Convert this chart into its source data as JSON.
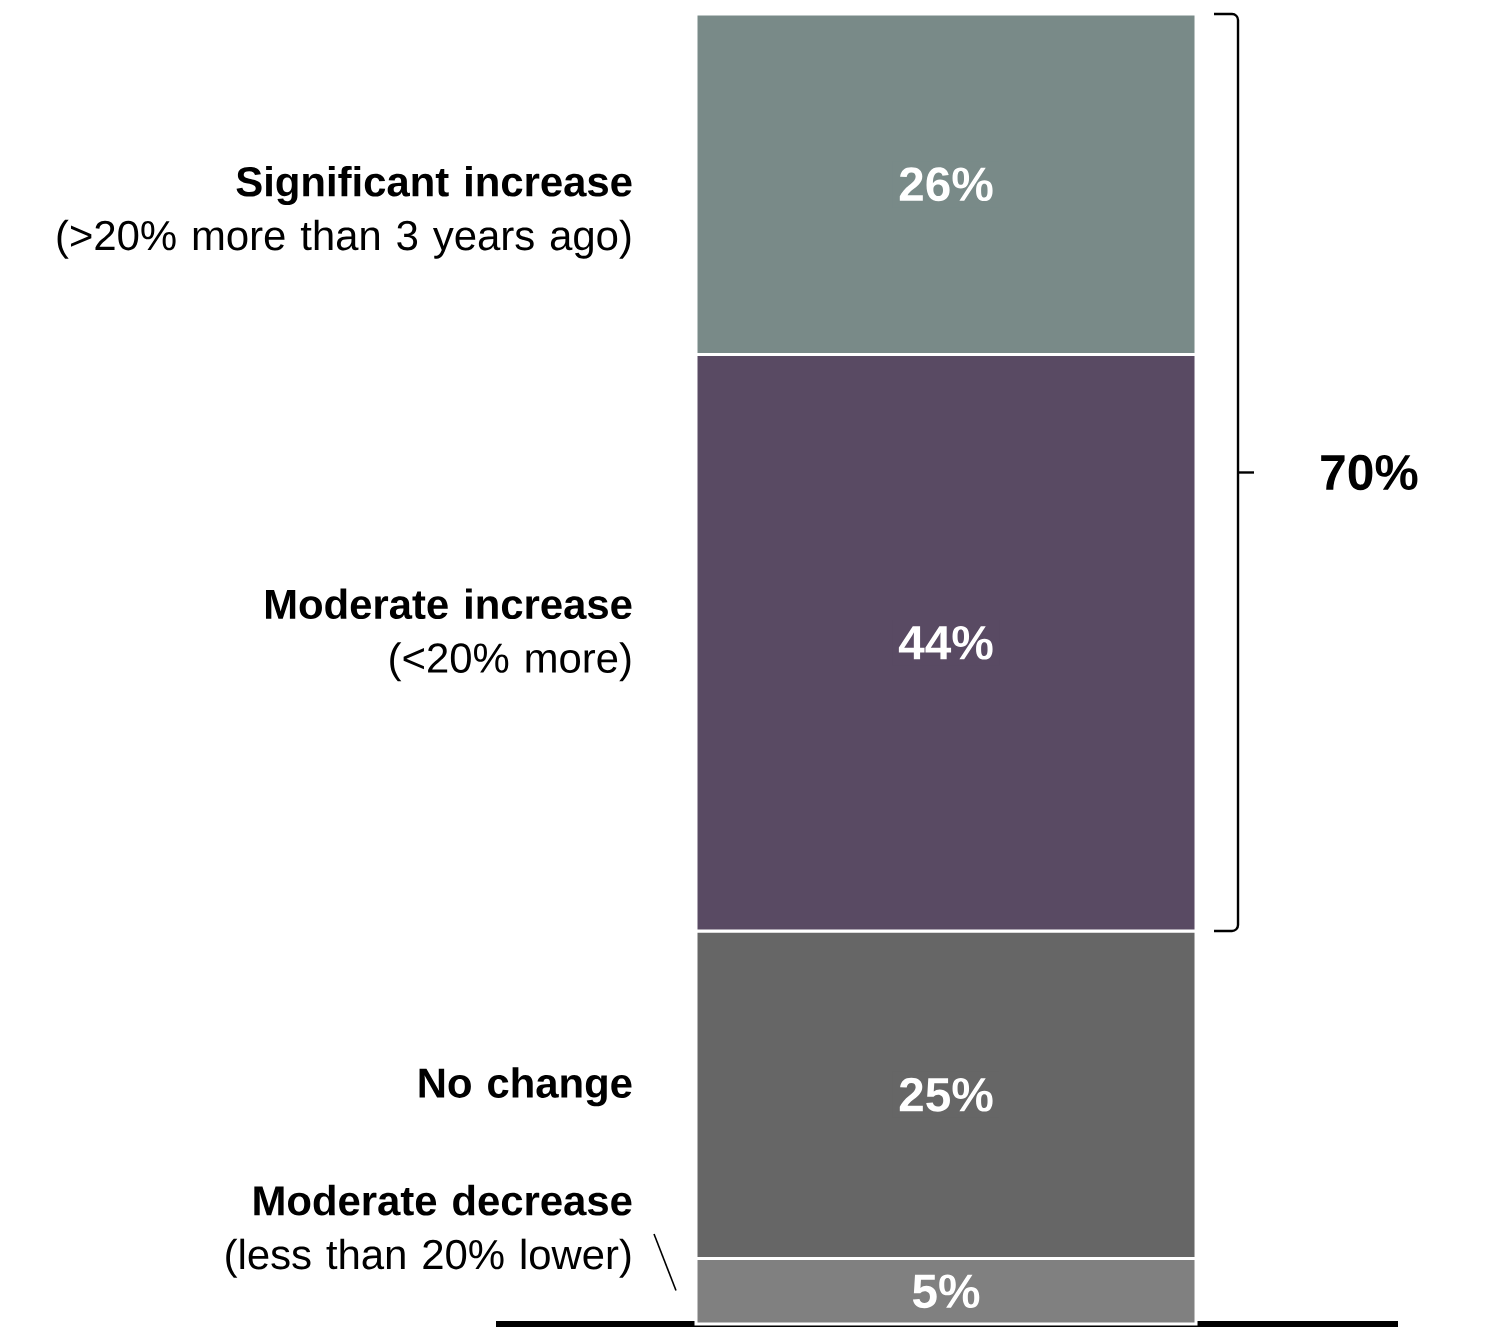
{
  "chart_data": {
    "type": "bar",
    "stacked": true,
    "categories": [
      null
    ],
    "series": [
      {
        "name": "**Moderate decrease**\n(less than 20% lower)",
        "color": "#808080",
        "values": [
          5
        ],
        "value_labels": [
          "5%"
        ]
      },
      {
        "name": "**No change**",
        "color": "#666666",
        "values": [
          25
        ],
        "value_labels": [
          "25%"
        ]
      },
      {
        "name": "**Moderate increase**\n(<20% more)",
        "color": "#594a63",
        "values": [
          44
        ],
        "value_labels": [
          "44%"
        ]
      },
      {
        "name": "**Significant increase**\n(>20% more than 3 years ago)",
        "color": "#798a88",
        "values": [
          26
        ],
        "value_labels": [
          "26%"
        ]
      }
    ],
    "annotations": [
      "70%"
    ]
  }
}
